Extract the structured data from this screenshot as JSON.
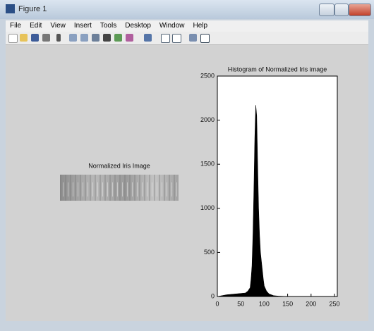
{
  "window": {
    "title": "Figure 1",
    "menu": [
      "File",
      "Edit",
      "View",
      "Insert",
      "Tools",
      "Desktop",
      "Window",
      "Help"
    ]
  },
  "left_image": {
    "title": "Normalized Iris Image"
  },
  "chart_data": {
    "type": "area",
    "title": "Histogram of Normalized Iris image",
    "x": [
      0,
      10,
      20,
      30,
      40,
      50,
      60,
      65,
      70,
      72,
      74,
      76,
      78,
      80,
      82,
      84,
      86,
      88,
      90,
      92,
      94,
      96,
      98,
      100,
      105,
      110,
      120,
      130,
      150,
      200,
      255
    ],
    "values": [
      0,
      10,
      20,
      25,
      30,
      35,
      40,
      60,
      100,
      200,
      350,
      700,
      1200,
      1800,
      2170,
      2050,
      1500,
      1000,
      700,
      500,
      400,
      300,
      200,
      120,
      60,
      30,
      10,
      5,
      0,
      0,
      0
    ],
    "color": "#000000",
    "xlim": [
      0,
      256
    ],
    "ylim": [
      0,
      2500
    ],
    "xticks": [
      0,
      50,
      100,
      150,
      200,
      250
    ],
    "yticks": [
      0,
      500,
      1000,
      1500,
      2000,
      2500
    ]
  }
}
